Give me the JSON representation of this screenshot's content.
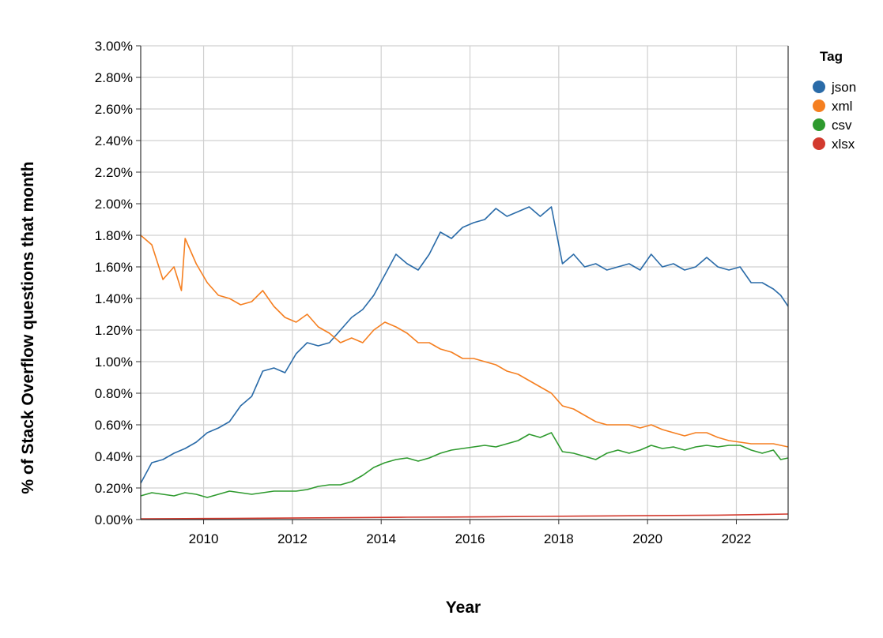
{
  "chart_data": {
    "type": "line",
    "xlabel": "Year",
    "ylabel": "% of Stack Overflow questions that month",
    "x_ticks": [
      "2010",
      "2012",
      "2014",
      "2016",
      "2018",
      "2020",
      "2022"
    ],
    "y_ticks": [
      "0.00%",
      "0.20%",
      "0.40%",
      "0.60%",
      "0.80%",
      "1.00%",
      "1.20%",
      "1.40%",
      "1.60%",
      "1.80%",
      "2.00%",
      "2.20%",
      "2.40%",
      "2.60%",
      "2.80%",
      "3.00%"
    ],
    "xlim": [
      "2008-08",
      "2023-03"
    ],
    "ylim": [
      0,
      3
    ],
    "grid": true,
    "legend": {
      "title": "Tag",
      "position": "right"
    },
    "series": [
      {
        "name": "json",
        "color": "#2a6ba8",
        "points": [
          [
            "2008-08",
            0.23
          ],
          [
            "2008-11",
            0.36
          ],
          [
            "2009-02",
            0.38
          ],
          [
            "2009-05",
            0.42
          ],
          [
            "2009-08",
            0.45
          ],
          [
            "2009-11",
            0.49
          ],
          [
            "2010-02",
            0.55
          ],
          [
            "2010-05",
            0.58
          ],
          [
            "2010-08",
            0.62
          ],
          [
            "2010-11",
            0.72
          ],
          [
            "2011-02",
            0.78
          ],
          [
            "2011-05",
            0.94
          ],
          [
            "2011-08",
            0.96
          ],
          [
            "2011-11",
            0.93
          ],
          [
            "2012-02",
            1.05
          ],
          [
            "2012-05",
            1.12
          ],
          [
            "2012-08",
            1.1
          ],
          [
            "2012-11",
            1.12
          ],
          [
            "2013-02",
            1.2
          ],
          [
            "2013-05",
            1.28
          ],
          [
            "2013-08",
            1.33
          ],
          [
            "2013-11",
            1.42
          ],
          [
            "2014-02",
            1.55
          ],
          [
            "2014-05",
            1.68
          ],
          [
            "2014-08",
            1.62
          ],
          [
            "2014-11",
            1.58
          ],
          [
            "2015-02",
            1.68
          ],
          [
            "2015-05",
            1.82
          ],
          [
            "2015-08",
            1.78
          ],
          [
            "2015-11",
            1.85
          ],
          [
            "2016-02",
            1.88
          ],
          [
            "2016-05",
            1.9
          ],
          [
            "2016-08",
            1.97
          ],
          [
            "2016-11",
            1.92
          ],
          [
            "2017-02",
            1.95
          ],
          [
            "2017-05",
            1.98
          ],
          [
            "2017-08",
            1.92
          ],
          [
            "2017-11",
            1.98
          ],
          [
            "2018-02",
            1.62
          ],
          [
            "2018-05",
            1.68
          ],
          [
            "2018-08",
            1.6
          ],
          [
            "2018-11",
            1.62
          ],
          [
            "2019-02",
            1.58
          ],
          [
            "2019-05",
            1.6
          ],
          [
            "2019-08",
            1.62
          ],
          [
            "2019-11",
            1.58
          ],
          [
            "2020-02",
            1.68
          ],
          [
            "2020-05",
            1.6
          ],
          [
            "2020-08",
            1.62
          ],
          [
            "2020-11",
            1.58
          ],
          [
            "2021-02",
            1.6
          ],
          [
            "2021-05",
            1.66
          ],
          [
            "2021-08",
            1.6
          ],
          [
            "2021-11",
            1.58
          ],
          [
            "2022-02",
            1.6
          ],
          [
            "2022-05",
            1.5
          ],
          [
            "2022-08",
            1.5
          ],
          [
            "2022-11",
            1.46
          ],
          [
            "2023-01",
            1.42
          ],
          [
            "2023-03",
            1.35
          ]
        ]
      },
      {
        "name": "xml",
        "color": "#f57f20",
        "points": [
          [
            "2008-08",
            1.8
          ],
          [
            "2008-11",
            1.74
          ],
          [
            "2009-02",
            1.52
          ],
          [
            "2009-05",
            1.6
          ],
          [
            "2009-07",
            1.45
          ],
          [
            "2009-08",
            1.78
          ],
          [
            "2009-11",
            1.62
          ],
          [
            "2010-02",
            1.5
          ],
          [
            "2010-05",
            1.42
          ],
          [
            "2010-08",
            1.4
          ],
          [
            "2010-11",
            1.36
          ],
          [
            "2011-02",
            1.38
          ],
          [
            "2011-05",
            1.45
          ],
          [
            "2011-08",
            1.35
          ],
          [
            "2011-11",
            1.28
          ],
          [
            "2012-02",
            1.25
          ],
          [
            "2012-05",
            1.3
          ],
          [
            "2012-08",
            1.22
          ],
          [
            "2012-11",
            1.18
          ],
          [
            "2013-02",
            1.12
          ],
          [
            "2013-05",
            1.15
          ],
          [
            "2013-08",
            1.12
          ],
          [
            "2013-11",
            1.2
          ],
          [
            "2014-02",
            1.25
          ],
          [
            "2014-05",
            1.22
          ],
          [
            "2014-08",
            1.18
          ],
          [
            "2014-11",
            1.12
          ],
          [
            "2015-02",
            1.12
          ],
          [
            "2015-05",
            1.08
          ],
          [
            "2015-08",
            1.06
          ],
          [
            "2015-11",
            1.02
          ],
          [
            "2016-02",
            1.02
          ],
          [
            "2016-05",
            1.0
          ],
          [
            "2016-08",
            0.98
          ],
          [
            "2016-11",
            0.94
          ],
          [
            "2017-02",
            0.92
          ],
          [
            "2017-05",
            0.88
          ],
          [
            "2017-08",
            0.84
          ],
          [
            "2017-11",
            0.8
          ],
          [
            "2018-02",
            0.72
          ],
          [
            "2018-05",
            0.7
          ],
          [
            "2018-08",
            0.66
          ],
          [
            "2018-11",
            0.62
          ],
          [
            "2019-02",
            0.6
          ],
          [
            "2019-05",
            0.6
          ],
          [
            "2019-08",
            0.6
          ],
          [
            "2019-11",
            0.58
          ],
          [
            "2020-02",
            0.6
          ],
          [
            "2020-05",
            0.57
          ],
          [
            "2020-08",
            0.55
          ],
          [
            "2020-11",
            0.53
          ],
          [
            "2021-02",
            0.55
          ],
          [
            "2021-05",
            0.55
          ],
          [
            "2021-08",
            0.52
          ],
          [
            "2021-11",
            0.5
          ],
          [
            "2022-02",
            0.49
          ],
          [
            "2022-05",
            0.48
          ],
          [
            "2022-08",
            0.48
          ],
          [
            "2022-11",
            0.48
          ],
          [
            "2023-01",
            0.47
          ],
          [
            "2023-03",
            0.46
          ]
        ]
      },
      {
        "name": "csv",
        "color": "#2e9a2e",
        "points": [
          [
            "2008-08",
            0.15
          ],
          [
            "2008-11",
            0.17
          ],
          [
            "2009-02",
            0.16
          ],
          [
            "2009-05",
            0.15
          ],
          [
            "2009-08",
            0.17
          ],
          [
            "2009-11",
            0.16
          ],
          [
            "2010-02",
            0.14
          ],
          [
            "2010-05",
            0.16
          ],
          [
            "2010-08",
            0.18
          ],
          [
            "2010-11",
            0.17
          ],
          [
            "2011-02",
            0.16
          ],
          [
            "2011-05",
            0.17
          ],
          [
            "2011-08",
            0.18
          ],
          [
            "2011-11",
            0.18
          ],
          [
            "2012-02",
            0.18
          ],
          [
            "2012-05",
            0.19
          ],
          [
            "2012-08",
            0.21
          ],
          [
            "2012-11",
            0.22
          ],
          [
            "2013-02",
            0.22
          ],
          [
            "2013-05",
            0.24
          ],
          [
            "2013-08",
            0.28
          ],
          [
            "2013-11",
            0.33
          ],
          [
            "2014-02",
            0.36
          ],
          [
            "2014-05",
            0.38
          ],
          [
            "2014-08",
            0.39
          ],
          [
            "2014-11",
            0.37
          ],
          [
            "2015-02",
            0.39
          ],
          [
            "2015-05",
            0.42
          ],
          [
            "2015-08",
            0.44
          ],
          [
            "2015-11",
            0.45
          ],
          [
            "2016-02",
            0.46
          ],
          [
            "2016-05",
            0.47
          ],
          [
            "2016-08",
            0.46
          ],
          [
            "2016-11",
            0.48
          ],
          [
            "2017-02",
            0.5
          ],
          [
            "2017-05",
            0.54
          ],
          [
            "2017-08",
            0.52
          ],
          [
            "2017-11",
            0.55
          ],
          [
            "2018-02",
            0.43
          ],
          [
            "2018-05",
            0.42
          ],
          [
            "2018-08",
            0.4
          ],
          [
            "2018-11",
            0.38
          ],
          [
            "2019-02",
            0.42
          ],
          [
            "2019-05",
            0.44
          ],
          [
            "2019-08",
            0.42
          ],
          [
            "2019-11",
            0.44
          ],
          [
            "2020-02",
            0.47
          ],
          [
            "2020-05",
            0.45
          ],
          [
            "2020-08",
            0.46
          ],
          [
            "2020-11",
            0.44
          ],
          [
            "2021-02",
            0.46
          ],
          [
            "2021-05",
            0.47
          ],
          [
            "2021-08",
            0.46
          ],
          [
            "2021-11",
            0.47
          ],
          [
            "2022-02",
            0.47
          ],
          [
            "2022-05",
            0.44
          ],
          [
            "2022-08",
            0.42
          ],
          [
            "2022-11",
            0.44
          ],
          [
            "2023-01",
            0.38
          ],
          [
            "2023-03",
            0.39
          ]
        ]
      },
      {
        "name": "xlsx",
        "color": "#d23a2e",
        "points": [
          [
            "2008-08",
            0.005
          ],
          [
            "2009-08",
            0.006
          ],
          [
            "2010-08",
            0.007
          ],
          [
            "2011-08",
            0.009
          ],
          [
            "2012-08",
            0.011
          ],
          [
            "2013-08",
            0.013
          ],
          [
            "2014-08",
            0.015
          ],
          [
            "2015-08",
            0.016
          ],
          [
            "2016-08",
            0.018
          ],
          [
            "2017-08",
            0.02
          ],
          [
            "2018-08",
            0.022
          ],
          [
            "2019-08",
            0.024
          ],
          [
            "2020-08",
            0.026
          ],
          [
            "2021-08",
            0.028
          ],
          [
            "2022-08",
            0.032
          ],
          [
            "2023-03",
            0.035
          ]
        ]
      }
    ]
  }
}
